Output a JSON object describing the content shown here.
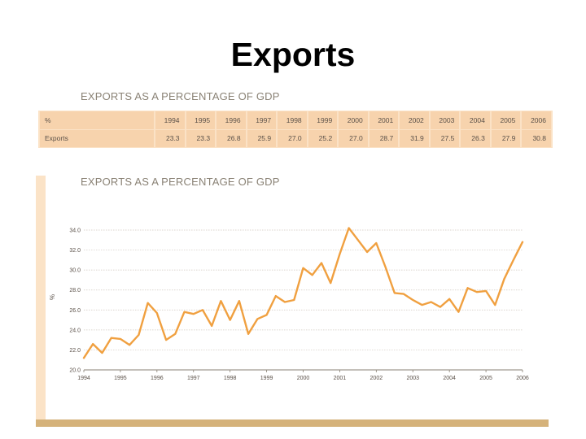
{
  "title": "Exports",
  "table": {
    "heading": "EXPORTS AS A PERCENTAGE OF GDP",
    "header_label": "%",
    "years": [
      "1994",
      "1995",
      "1996",
      "1997",
      "1998",
      "1999",
      "2000",
      "2001",
      "2002",
      "2003",
      "2004",
      "2005",
      "2006"
    ],
    "row_label": "Exports",
    "values": [
      "23.3",
      "23.3",
      "26.8",
      "25.9",
      "27.0",
      "25.2",
      "27.0",
      "28.7",
      "31.9",
      "27.5",
      "26.3",
      "27.9",
      "30.8"
    ]
  },
  "chart_data": {
    "type": "line",
    "title": "EXPORTS AS A PERCENTAGE OF GDP",
    "ylabel": "%",
    "xlabel": "",
    "ylim": [
      20,
      34
    ],
    "xlim": [
      1994,
      2006
    ],
    "y_ticks": [
      "20.0",
      "22.0",
      "24.0",
      "26.0",
      "28.0",
      "30.0",
      "32.0",
      "34.0"
    ],
    "x_ticks": [
      "1994",
      "1995",
      "1996",
      "1997",
      "1998",
      "1999",
      "2000",
      "2001",
      "2002",
      "2003",
      "2004",
      "2005",
      "2006"
    ],
    "grid": true,
    "color": "#f0a040",
    "series": [
      {
        "x": [
          1994.0,
          1994.25,
          1994.5,
          1994.75,
          1995.0,
          1995.25,
          1995.5,
          1995.75,
          1996.0,
          1996.25,
          1996.5,
          1996.75,
          1997.0,
          1997.25,
          1997.5,
          1997.75,
          1998.0,
          1998.25,
          1998.5,
          1998.75,
          1999.0,
          1999.25,
          1999.5,
          1999.75,
          2000.0,
          2000.25,
          2000.5,
          2000.75,
          2001.0,
          2001.25,
          2001.5,
          2001.75,
          2002.0,
          2002.25,
          2002.5,
          2002.75,
          2003.0,
          2003.25,
          2003.5,
          2003.75,
          2004.0,
          2004.25,
          2004.5,
          2004.75,
          2005.0,
          2005.25,
          2005.5,
          2005.75,
          2006.0
        ],
        "y": [
          21.2,
          22.6,
          21.7,
          23.2,
          23.1,
          22.5,
          23.5,
          26.7,
          25.7,
          23.0,
          23.6,
          25.8,
          25.6,
          26.0,
          24.4,
          26.9,
          25.0,
          26.9,
          23.6,
          25.1,
          25.5,
          27.4,
          26.8,
          27.0,
          30.2,
          29.5,
          30.7,
          28.7,
          31.6,
          34.2,
          33.0,
          31.8,
          32.7,
          30.3,
          27.7,
          27.6,
          27.0,
          26.5,
          26.8,
          26.3,
          27.1,
          25.8,
          28.2,
          27.8,
          27.9,
          26.5,
          29.1,
          31.0,
          32.8
        ]
      }
    ]
  }
}
